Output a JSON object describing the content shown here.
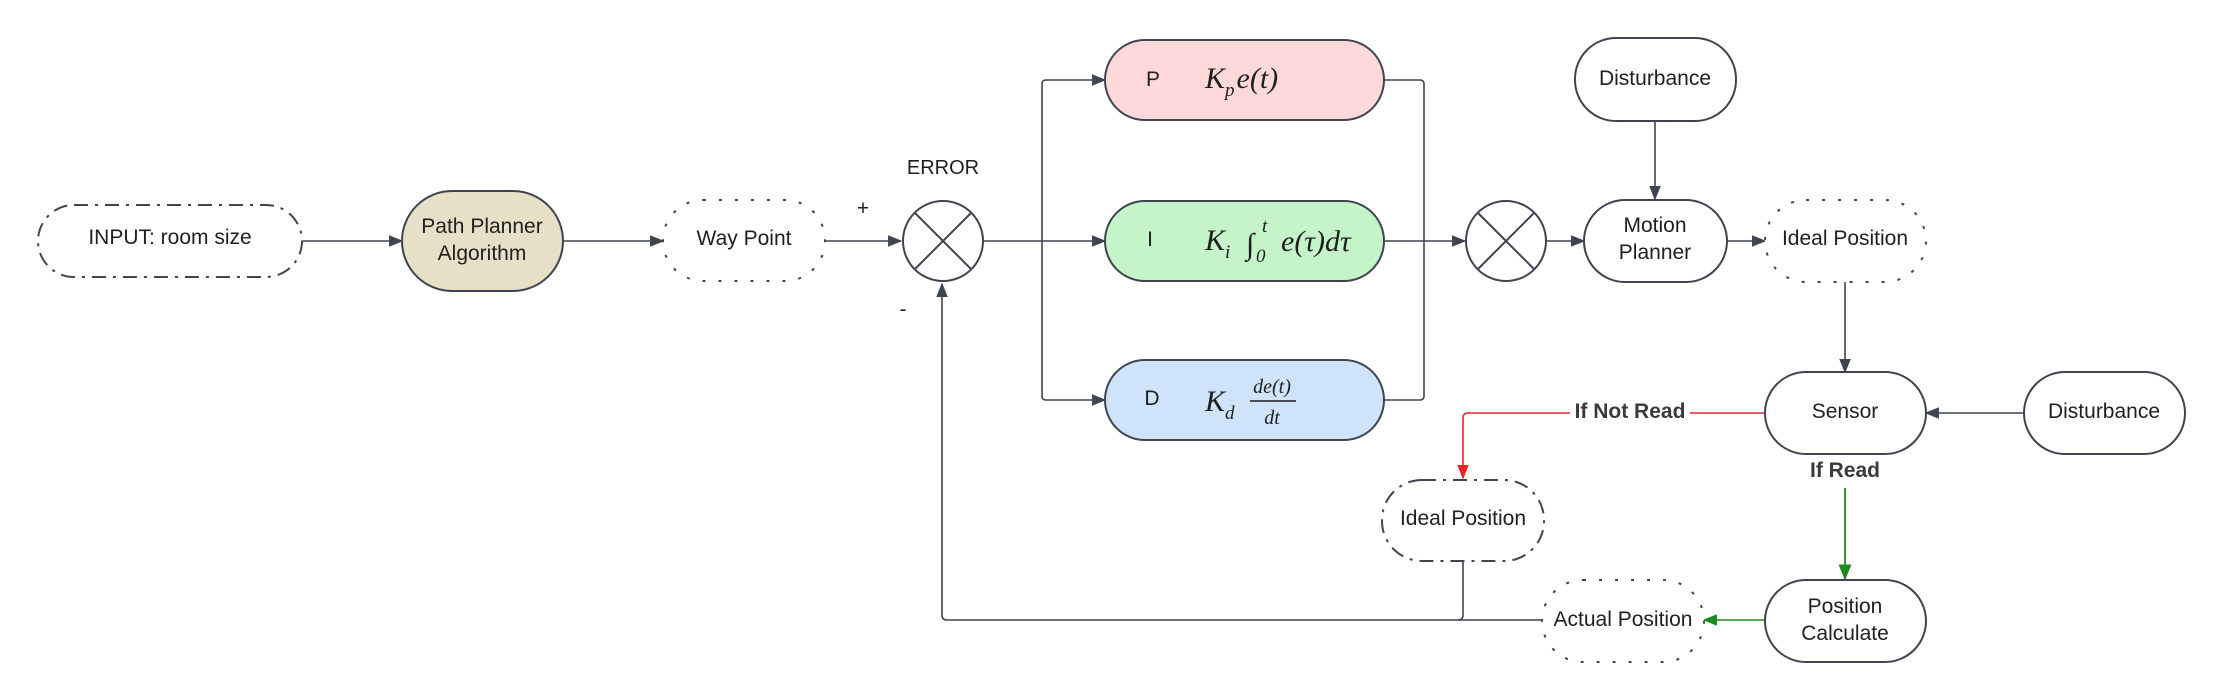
{
  "nodes": {
    "input": "INPUT: room size",
    "path_planner": [
      "Path Planner",
      "Algorithm"
    ],
    "way_point": "Way Point",
    "error_label": "ERROR",
    "plus_sign": "+",
    "minus_sign": "-",
    "p_letter": "P",
    "i_letter": "I",
    "d_letter": "D",
    "disturbance_top": "Disturbance",
    "motion_planner": [
      "Motion",
      "Planner"
    ],
    "ideal_position_right": "Ideal Position",
    "sensor": "Sensor",
    "disturbance_right": "Disturbance",
    "if_not_read": "If Not Read",
    "if_read": "If Read",
    "ideal_position_lower": "Ideal Position",
    "actual_position": "Actual Position",
    "position_calculate": [
      "Position",
      "Calculate"
    ]
  },
  "formulas": {
    "p_K": "K",
    "p_sub": "p",
    "p_rest": "e(t)",
    "i_K": "K",
    "i_sub": "i",
    "i_integral": "∫",
    "i_lower": "0",
    "i_upper": "t",
    "i_rest": "e(τ)dτ",
    "d_K": "K",
    "d_sub": "d",
    "d_num": "de(t)",
    "d_den": "dt"
  },
  "colors": {
    "path_planner_fill": "#e8e0c6",
    "p_fill": "#ffd9da",
    "i_fill": "#c4f4c8",
    "d_fill": "#cfe3fb",
    "red_edge": "#e8242a",
    "green_edge": "#1f8a1f",
    "line": "#3f4451"
  }
}
